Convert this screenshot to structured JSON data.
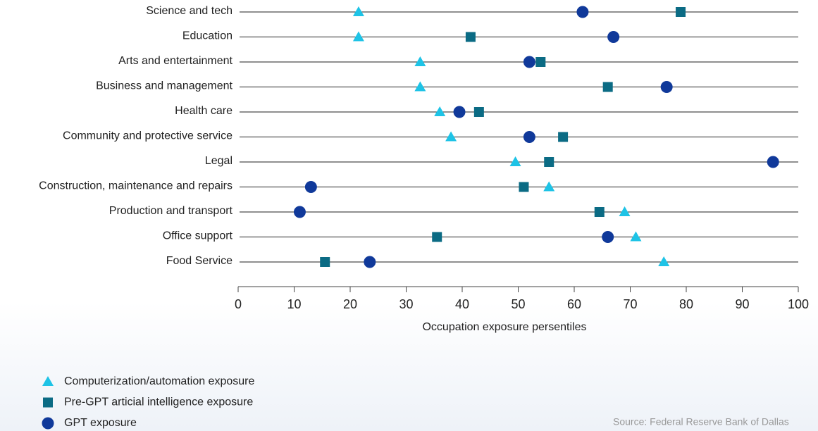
{
  "chart_data": {
    "type": "dot",
    "categories": [
      "Science and tech",
      "Education",
      "Arts and entertainment",
      "Business and management",
      "Health care",
      "Community and protective service",
      "Legal",
      "Construction, maintenance and repairs",
      "Production and transport",
      "Office support",
      "Food Service"
    ],
    "series": [
      {
        "name": "Computerization/automation exposure",
        "color": "#1ec3e6",
        "marker": "triangle",
        "values": [
          21.5,
          21.5,
          32.5,
          32.5,
          36,
          38,
          49.5,
          55.5,
          69,
          71,
          76
        ]
      },
      {
        "name": "Pre-GPT articial intelligence exposure",
        "color": "#0b6b84",
        "marker": "square",
        "values": [
          79,
          41.5,
          54,
          66,
          43,
          58,
          55.5,
          51,
          64.5,
          35.5,
          15.5
        ]
      },
      {
        "name": "GPT exposure",
        "color": "#10399a",
        "marker": "circle",
        "values": [
          61.5,
          67,
          52,
          76.5,
          39.5,
          52,
          95.5,
          13,
          11,
          66,
          23.5
        ]
      }
    ],
    "xlabel": "Occupation exposure persentiles",
    "xlim": [
      0,
      100
    ],
    "xticks": [
      0,
      10,
      20,
      30,
      40,
      50,
      60,
      70,
      80,
      90,
      100
    ],
    "source": "Source: Federal Reserve Bank of Dallas"
  }
}
